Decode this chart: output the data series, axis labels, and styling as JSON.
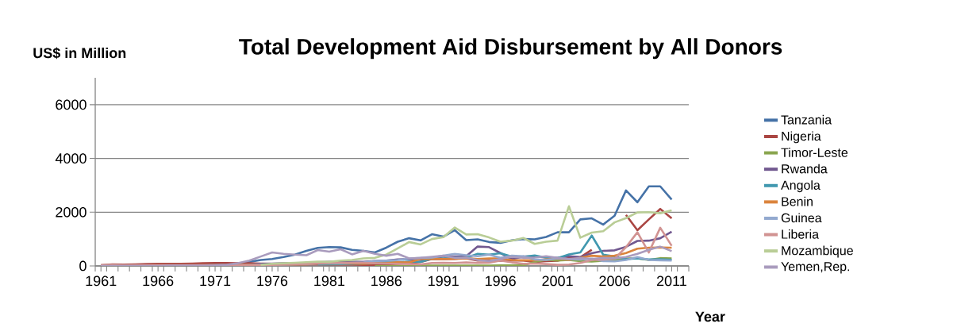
{
  "chart_data": {
    "type": "line",
    "title": "Total Development Aid Disbursement by All Donors",
    "xlabel": "Year",
    "ylabel": "US$ in Million",
    "x": [
      1961,
      1962,
      1963,
      1964,
      1965,
      1966,
      1967,
      1968,
      1969,
      1970,
      1971,
      1972,
      1973,
      1974,
      1975,
      1976,
      1977,
      1978,
      1979,
      1980,
      1981,
      1982,
      1983,
      1984,
      1985,
      1986,
      1987,
      1988,
      1989,
      1990,
      1991,
      1992,
      1993,
      1994,
      1995,
      1996,
      1997,
      1998,
      1999,
      2000,
      2001,
      2002,
      2003,
      2004,
      2005,
      2006,
      2007,
      2008,
      2009,
      2010,
      2011
    ],
    "xlim": [
      1960.5,
      2012.5
    ],
    "xticks": [
      1961,
      1966,
      1971,
      1976,
      1981,
      1986,
      1991,
      1996,
      2001,
      2006,
      2011
    ],
    "ylim": [
      0,
      7000
    ],
    "yticks": [
      0,
      2000,
      4000,
      6000
    ],
    "grid": "y",
    "legend": "right",
    "series": [
      {
        "name": "Tanzania",
        "color": "#4572a7",
        "values": [
          10,
          10,
          20,
          20,
          20,
          20,
          30,
          30,
          30,
          40,
          40,
          50,
          80,
          150,
          220,
          260,
          330,
          420,
          560,
          670,
          700,
          690,
          600,
          560,
          500,
          680,
          900,
          1030,
          950,
          1180,
          1090,
          1330,
          960,
          990,
          890,
          860,
          950,
          1000,
          990,
          1080,
          1250,
          1250,
          1730,
          1770,
          1540,
          1870,
          2810,
          2370,
          2960,
          2960,
          2470
        ]
      },
      {
        "name": "Nigeria",
        "color": "#aa4643",
        "values": [
          30,
          60,
          50,
          60,
          70,
          80,
          80,
          80,
          90,
          100,
          110,
          110,
          100,
          100,
          90,
          80,
          70,
          60,
          60,
          60,
          50,
          50,
          50,
          40,
          40,
          60,
          80,
          100,
          150,
          260,
          250,
          260,
          280,
          200,
          210,
          190,
          200,
          200,
          150,
          180,
          190,
          300,
          320,
          600,
          null,
          null,
          1900,
          1330,
          1730,
          2120,
          1770
        ]
      },
      {
        "name": "Timor-Leste",
        "color": "#89a54e",
        "values": [
          null,
          null,
          null,
          null,
          null,
          null,
          null,
          null,
          null,
          null,
          null,
          null,
          null,
          null,
          null,
          null,
          null,
          null,
          null,
          null,
          null,
          null,
          null,
          null,
          0,
          0,
          0,
          0,
          10,
          10,
          10,
          10,
          10,
          10,
          10,
          20,
          20,
          20,
          150,
          230,
          200,
          220,
          180,
          160,
          190,
          210,
          280,
          280,
          220,
          290,
          280
        ]
      },
      {
        "name": "Rwanda",
        "color": "#71588f",
        "values": [
          0,
          0,
          10,
          10,
          10,
          20,
          20,
          20,
          20,
          20,
          30,
          30,
          30,
          40,
          80,
          90,
          100,
          110,
          120,
          140,
          150,
          150,
          150,
          150,
          180,
          200,
          240,
          250,
          230,
          290,
          350,
          350,
          360,
          720,
          700,
          480,
          250,
          350,
          350,
          320,
          300,
          360,
          330,
          470,
          560,
          580,
          710,
          930,
          940,
          1030,
          1270
        ]
      },
      {
        "name": "Angola",
        "color": "#4198af",
        "values": [
          null,
          null,
          null,
          null,
          null,
          null,
          null,
          null,
          null,
          null,
          null,
          null,
          null,
          null,
          null,
          null,
          null,
          null,
          null,
          60,
          60,
          70,
          80,
          90,
          100,
          130,
          140,
          160,
          150,
          270,
          280,
          300,
          300,
          450,
          420,
          470,
          350,
          340,
          390,
          310,
          290,
          430,
          500,
          1130,
          420,
          350,
          250,
          280,
          240,
          250,
          230
        ]
      },
      {
        "name": "Benin",
        "color": "#db843d",
        "values": [
          10,
          20,
          20,
          20,
          20,
          30,
          30,
          30,
          30,
          30,
          30,
          30,
          40,
          40,
          50,
          50,
          60,
          60,
          60,
          90,
          90,
          90,
          90,
          80,
          100,
          110,
          140,
          130,
          260,
          270,
          260,
          270,
          290,
          260,
          280,
          280,
          220,
          210,
          210,
          240,
          270,
          220,
          300,
          380,
          350,
          380,
          480,
          640,
          680,
          690,
          680
        ]
      },
      {
        "name": "Guinea",
        "color": "#93a9cf",
        "values": [
          0,
          0,
          10,
          10,
          10,
          10,
          20,
          20,
          20,
          20,
          20,
          20,
          30,
          30,
          40,
          50,
          60,
          70,
          80,
          90,
          100,
          100,
          120,
          130,
          180,
          200,
          220,
          270,
          300,
          310,
          380,
          450,
          400,
          360,
          420,
          300,
          380,
          360,
          240,
          220,
          280,
          250,
          240,
          270,
          180,
          170,
          220,
          330,
          220,
          210,
          200
        ]
      },
      {
        "name": "Liberia",
        "color": "#d19392",
        "values": [
          30,
          40,
          30,
          30,
          30,
          30,
          30,
          30,
          30,
          30,
          30,
          30,
          30,
          30,
          30,
          40,
          50,
          60,
          80,
          100,
          110,
          120,
          120,
          120,
          100,
          90,
          80,
          70,
          60,
          110,
          120,
          110,
          130,
          110,
          120,
          200,
          130,
          80,
          90,
          70,
          40,
          50,
          110,
          220,
          240,
          270,
          700,
          1250,
          500,
          1420,
          750
        ]
      },
      {
        "name": "Mozambique",
        "color": "#b9cd96",
        "values": [
          null,
          null,
          null,
          null,
          null,
          null,
          null,
          null,
          null,
          null,
          null,
          null,
          null,
          null,
          40,
          80,
          100,
          120,
          140,
          160,
          150,
          200,
          220,
          280,
          300,
          420,
          650,
          890,
          800,
          1000,
          1070,
          1430,
          1170,
          1180,
          1060,
          900,
          940,
          1040,
          820,
          900,
          940,
          2220,
          1050,
          1240,
          1290,
          1620,
          1780,
          1990,
          2000,
          1960,
          2070
        ]
      },
      {
        "name": "Yemen,Rep.",
        "color": "#a99bbd",
        "values": [
          0,
          0,
          0,
          0,
          0,
          0,
          10,
          10,
          10,
          10,
          20,
          40,
          100,
          200,
          350,
          500,
          450,
          420,
          400,
          590,
          530,
          620,
          430,
          560,
          450,
          380,
          450,
          280,
          300,
          340,
          380,
          300,
          310,
          220,
          180,
          260,
          340,
          300,
          310,
          360,
          300,
          260,
          290,
          260,
          300,
          280,
          330,
          450,
          600,
          720,
          550
        ]
      }
    ]
  }
}
